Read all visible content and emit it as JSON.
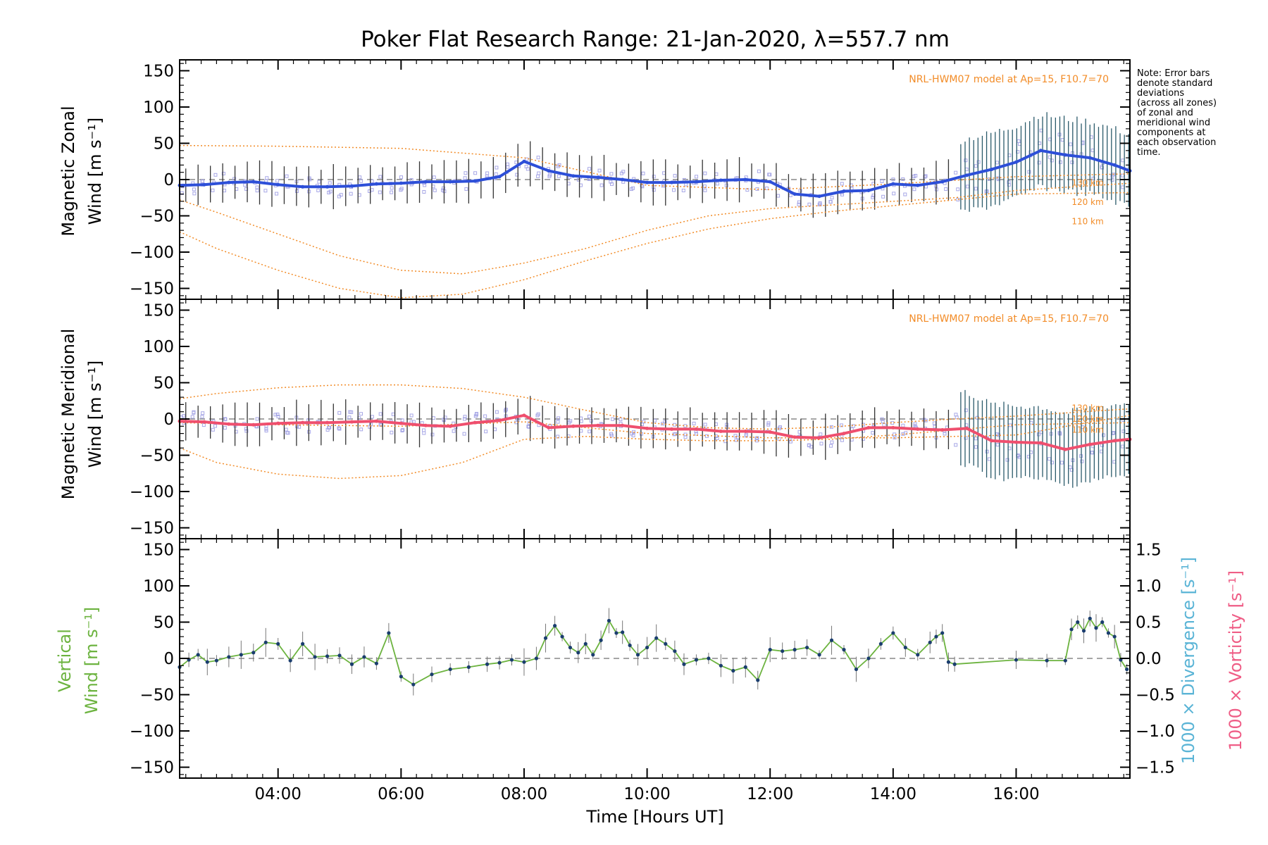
{
  "title": "Poker Flat Research Range: 21-Jan-2020, λ=557.7 nm",
  "note_lines": [
    "Note: Error bars",
    "denote standard",
    "deviations",
    "(across all zones)",
    "of zonal and",
    "meridional wind",
    "components at",
    "each observation",
    "time."
  ],
  "x_axis": {
    "label": "Time [Hours UT]",
    "ticks": [
      "04:00",
      "06:00",
      "08:00",
      "10:00",
      "12:00",
      "14:00",
      "16:00"
    ],
    "tick_values": [
      4,
      6,
      8,
      10,
      12,
      14,
      16
    ],
    "range": [
      2.4,
      17.85
    ]
  },
  "colors": {
    "zonal": "#2d4fd8",
    "zonal_late": "#5ab4d6",
    "meridional": "#ef4f6e",
    "vertical": "#6cb33f",
    "model": "#f28c28",
    "scatter": "#a7a7e6",
    "divergence": "#5ab4d6",
    "vorticity": "#ef5d86"
  },
  "chart_data": [
    {
      "type": "line",
      "panel": "zonal",
      "ylabel_lines": [
        "Magnetic Zonal",
        "Wind [m s⁻¹]"
      ],
      "yticks": [
        "150",
        "100",
        "50",
        "0",
        "−50",
        "−100",
        "−150"
      ],
      "ylim": [
        -165,
        165
      ],
      "model_label": "NRL-HWM07 model at Ap=15, F10.7=70",
      "altitude_labels": [
        "130 km",
        "120 km",
        "110 km"
      ],
      "series": [
        {
          "x": [
            2.4,
            2.8,
            3.2,
            3.6,
            4.0,
            4.4,
            4.8,
            5.2,
            5.6,
            6.0,
            6.4,
            6.8,
            7.2,
            7.6,
            8.0,
            8.4,
            8.8,
            9.2,
            9.6,
            10.0,
            10.4,
            10.8,
            11.2,
            11.6,
            12.0,
            12.4,
            12.8,
            13.2,
            13.6,
            14.0,
            14.4,
            14.8,
            15.2,
            15.6,
            16.0,
            16.4,
            16.8,
            17.2,
            17.6,
            17.85
          ],
          "y": [
            -8,
            -7,
            -4,
            -3,
            -7,
            -10,
            -10,
            -9,
            -6,
            -5,
            -3,
            -3,
            -2,
            4,
            25,
            12,
            5,
            3,
            0,
            -4,
            -4,
            -3,
            -1,
            0,
            -3,
            -20,
            -23,
            -16,
            -15,
            -6,
            -8,
            -3,
            6,
            14,
            24,
            40,
            34,
            30,
            20,
            12
          ]
        },
        {
          "model": "130 km",
          "x": [
            2.4,
            4,
            6,
            8,
            10,
            12,
            14,
            16,
            17.85
          ],
          "y": [
            47,
            46,
            43,
            30,
            -8,
            -14,
            -6,
            4,
            8
          ]
        },
        {
          "model": "120 km",
          "x": [
            2.4,
            3,
            4,
            5,
            6,
            7,
            8,
            9,
            10,
            11,
            12,
            13,
            14,
            15,
            16,
            17.85
          ],
          "y": [
            -28,
            -45,
            -75,
            -105,
            -125,
            -130,
            -115,
            -95,
            -70,
            -50,
            -40,
            -35,
            -30,
            -25,
            -15,
            -5
          ]
        },
        {
          "model": "110 km",
          "x": [
            2.4,
            3,
            4,
            5,
            6,
            7,
            8,
            9,
            10,
            11,
            12,
            13,
            14,
            15,
            16,
            17.85
          ],
          "y": [
            -72,
            -95,
            -125,
            -150,
            -163,
            -158,
            -138,
            -112,
            -88,
            -68,
            -54,
            -44,
            -36,
            -28,
            -20,
            -18
          ]
        }
      ]
    },
    {
      "type": "line",
      "panel": "meridional",
      "ylabel_lines": [
        "Magnetic Meridional",
        "Wind [m s⁻¹]"
      ],
      "yticks": [
        "150",
        "100",
        "50",
        "0",
        "−50",
        "−100",
        "−150"
      ],
      "ylim": [
        -165,
        165
      ],
      "model_label": "NRL-HWM07 model at Ap=15, F10.7=70",
      "altitude_labels": [
        "130 km",
        "120 km",
        "110 km"
      ],
      "series": [
        {
          "x": [
            2.4,
            2.8,
            3.2,
            3.6,
            4.0,
            4.4,
            4.8,
            5.2,
            5.6,
            6.0,
            6.4,
            6.8,
            7.2,
            7.6,
            8.0,
            8.4,
            8.8,
            9.2,
            9.6,
            10.0,
            10.4,
            10.8,
            11.2,
            11.6,
            12.0,
            12.4,
            12.8,
            13.2,
            13.6,
            14.0,
            14.4,
            14.8,
            15.2,
            15.6,
            16.0,
            16.4,
            16.8,
            17.2,
            17.6,
            17.85
          ],
          "y": [
            -3,
            -4,
            -7,
            -8,
            -6,
            -5,
            -5,
            -4,
            -3,
            -6,
            -9,
            -10,
            -5,
            -2,
            5,
            -12,
            -10,
            -9,
            -9,
            -13,
            -14,
            -14,
            -17,
            -17,
            -18,
            -25,
            -26,
            -20,
            -12,
            -12,
            -14,
            -15,
            -13,
            -30,
            -32,
            -33,
            -42,
            -35,
            -30,
            -28
          ]
        },
        {
          "model": "130 km",
          "x": [
            2.4,
            3,
            4,
            5,
            6,
            7,
            8,
            9,
            10,
            11,
            12,
            13,
            14,
            15,
            16,
            17.85
          ],
          "y": [
            28,
            35,
            43,
            47,
            47,
            42,
            30,
            12,
            -5,
            -12,
            -14,
            -11,
            -5,
            0,
            4,
            14
          ]
        },
        {
          "model": "120 km",
          "x": [
            2.4,
            4,
            6,
            8,
            10,
            12,
            14,
            16,
            17.85
          ],
          "y": [
            -5,
            -8,
            -10,
            -4,
            -20,
            -26,
            -26,
            -22,
            5
          ]
        },
        {
          "model": "110 km",
          "x": [
            2.4,
            3,
            4,
            5,
            6,
            7,
            8,
            9,
            10,
            11,
            12,
            13,
            14,
            15,
            16,
            17.85
          ],
          "y": [
            -40,
            -60,
            -76,
            -82,
            -78,
            -60,
            -28,
            -24,
            -28,
            -30,
            -30,
            -28,
            -22,
            -15,
            -8,
            -5
          ]
        }
      ]
    },
    {
      "type": "line",
      "panel": "vertical",
      "ylabel_lines": [
        "Vertical",
        "Wind [m s⁻¹]"
      ],
      "yticks": [
        "150",
        "100",
        "50",
        "0",
        "−50",
        "−100",
        "−150"
      ],
      "ylim": [
        -165,
        165
      ],
      "y2label_lines": [
        "1000 × Divergence [s⁻¹]",
        "1000 × Vorticity [s⁻¹]"
      ],
      "y2ticks": [
        "1.5",
        "1.0",
        "0.5",
        "0.0",
        "−0.5",
        "−1.0",
        "−1.5"
      ],
      "y2lim": [
        -1.65,
        1.65
      ],
      "series": [
        {
          "name": "vertical",
          "x": [
            2.4,
            2.55,
            2.7,
            2.85,
            3.0,
            3.2,
            3.4,
            3.6,
            3.8,
            4.0,
            4.2,
            4.4,
            4.6,
            4.8,
            5.0,
            5.2,
            5.4,
            5.6,
            5.8,
            6.0,
            6.2,
            6.5,
            6.8,
            7.1,
            7.4,
            7.6,
            7.8,
            8.0,
            8.2,
            8.35,
            8.5,
            8.62,
            8.75,
            8.88,
            9.0,
            9.12,
            9.25,
            9.38,
            9.5,
            9.6,
            9.72,
            9.85,
            10.0,
            10.15,
            10.3,
            10.45,
            10.6,
            10.8,
            11.0,
            11.2,
            11.4,
            11.6,
            11.8,
            12.0,
            12.2,
            12.4,
            12.6,
            12.8,
            13.0,
            13.2,
            13.4,
            13.6,
            13.8,
            14.0,
            14.2,
            14.4,
            14.6,
            14.7,
            14.8,
            14.9,
            15.0,
            16.0,
            16.5,
            16.8,
            16.9,
            17.0,
            17.1,
            17.2,
            17.3,
            17.4,
            17.5,
            17.6,
            17.7,
            17.8
          ],
          "y": [
            -12,
            -2,
            5,
            -5,
            -3,
            2,
            5,
            8,
            22,
            20,
            -3,
            20,
            2,
            3,
            4,
            -8,
            2,
            -7,
            35,
            -25,
            -36,
            -22,
            -15,
            -12,
            -8,
            -6,
            -2,
            -5,
            0,
            28,
            45,
            30,
            15,
            8,
            20,
            5,
            25,
            52,
            35,
            36,
            18,
            5,
            15,
            28,
            20,
            10,
            -8,
            -2,
            0,
            -10,
            -17,
            -12,
            -30,
            12,
            10,
            12,
            15,
            5,
            25,
            12,
            -15,
            0,
            20,
            35,
            15,
            5,
            22,
            30,
            35,
            -5,
            -8,
            -2,
            -3,
            -3,
            40,
            50,
            38,
            55,
            42,
            50,
            35,
            30,
            -2,
            -15
          ]
        }
      ]
    }
  ]
}
